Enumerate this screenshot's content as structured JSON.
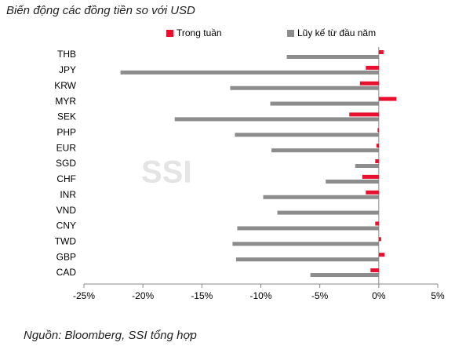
{
  "chart_data": {
    "type": "bar",
    "orientation": "horizontal",
    "title": "Biến động các đồng tiền so với USD",
    "source": "Nguồn: Bloomberg, SSI tổng hợp",
    "watermark": "SSI",
    "categories": [
      "THB",
      "JPY",
      "KRW",
      "MYR",
      "SEK",
      "PHP",
      "EUR",
      "SGD",
      "CHF",
      "INR",
      "VND",
      "CNY",
      "TWD",
      "GBP",
      "CAD"
    ],
    "series": [
      {
        "name": "Trong tuần",
        "color": "#e8102e",
        "values": [
          0.4,
          -1.1,
          -1.6,
          1.5,
          -2.5,
          -0.1,
          -0.2,
          -0.3,
          -1.4,
          -1.1,
          0,
          -0.3,
          0.2,
          0.5,
          -0.7
        ]
      },
      {
        "name": "Lũy kế từ đầu năm",
        "color": "#8c8c8c",
        "values": [
          -7.8,
          -21.9,
          -12.6,
          -9.2,
          -17.3,
          -12.2,
          -9.1,
          -2.0,
          -4.5,
          -9.8,
          -8.6,
          -12.0,
          -12.4,
          -12.1,
          -5.8
        ]
      }
    ],
    "xlim": [
      -25,
      5
    ],
    "xticks": [
      {
        "value": -25,
        "label": "-25%"
      },
      {
        "value": -20,
        "label": "-20%"
      },
      {
        "value": -15,
        "label": "-15%"
      },
      {
        "value": -10,
        "label": "-10%"
      },
      {
        "value": -5,
        "label": "-5%"
      },
      {
        "value": 0,
        "label": "0%"
      },
      {
        "value": 5,
        "label": "5%"
      }
    ],
    "legend": "top"
  }
}
